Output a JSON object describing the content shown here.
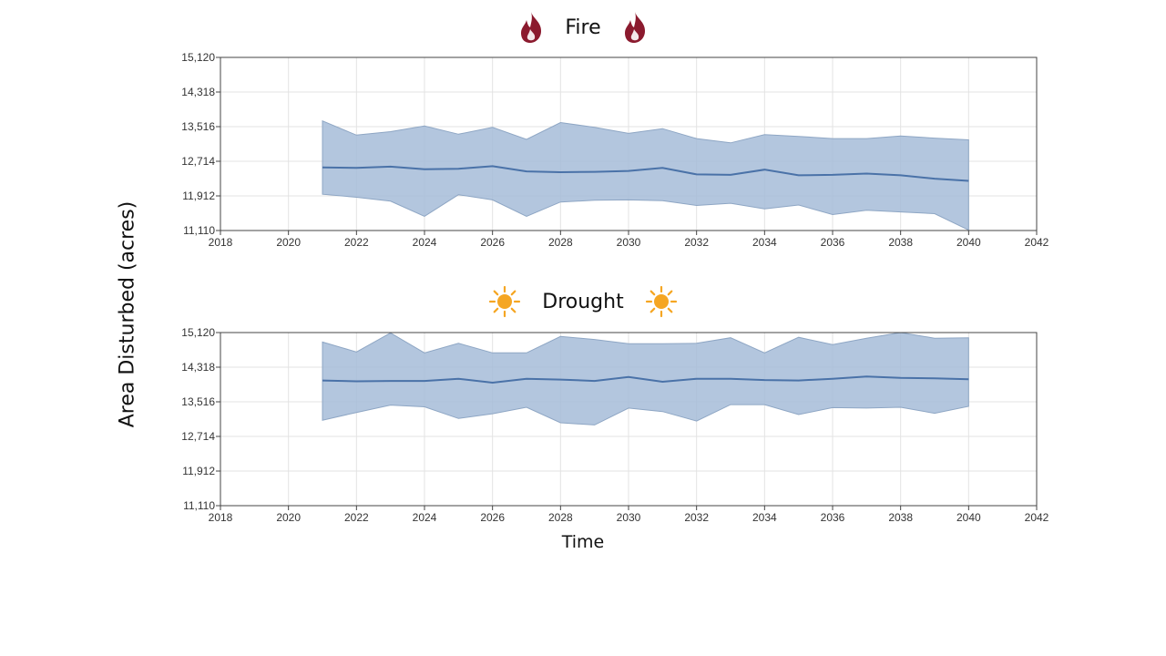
{
  "ylabel": "Area Disturbed (acres)",
  "xlabel": "Time",
  "chart_data": [
    {
      "type": "area",
      "title": "Fire",
      "title_icon": "flame-icon",
      "icon_color": "#8b1a2e",
      "xlim": [
        2018,
        2042
      ],
      "ylim": [
        11110,
        15120
      ],
      "xticks": [
        "2018",
        "2020",
        "2022",
        "2024",
        "2026",
        "2028",
        "2030",
        "2032",
        "2034",
        "2036",
        "2038",
        "2040",
        "2042"
      ],
      "yticks": [
        "11,110",
        "11,912",
        "12,714",
        "13,516",
        "14,318",
        "15,120"
      ],
      "grid": true,
      "x": [
        2021,
        2022,
        2023,
        2024,
        2025,
        2026,
        2027,
        2028,
        2029,
        2030,
        2031,
        2032,
        2033,
        2034,
        2035,
        2036,
        2037,
        2038,
        2039,
        2040
      ],
      "series": [
        {
          "role": "upper",
          "values": [
            13650,
            13320,
            13400,
            13530,
            13340,
            13500,
            13220,
            13610,
            13500,
            13360,
            13470,
            13240,
            13140,
            13330,
            13290,
            13240,
            13240,
            13300,
            13250,
            13210
          ]
        },
        {
          "role": "mean",
          "values": [
            12570,
            12560,
            12590,
            12530,
            12540,
            12600,
            12480,
            12460,
            12470,
            12490,
            12560,
            12410,
            12400,
            12520,
            12390,
            12400,
            12430,
            12390,
            12310,
            12260
          ]
        },
        {
          "role": "lower",
          "values": [
            11950,
            11880,
            11790,
            11440,
            11940,
            11820,
            11440,
            11770,
            11810,
            11820,
            11800,
            11690,
            11740,
            11610,
            11700,
            11480,
            11580,
            11540,
            11500,
            11120
          ]
        }
      ]
    },
    {
      "type": "area",
      "title": "Drought",
      "title_icon": "sun-icon",
      "icon_color": "#f5a623",
      "xlim": [
        2018,
        2042
      ],
      "ylim": [
        11110,
        15120
      ],
      "xticks": [
        "2018",
        "2020",
        "2022",
        "2024",
        "2026",
        "2028",
        "2030",
        "2032",
        "2034",
        "2036",
        "2038",
        "2040",
        "2042"
      ],
      "yticks": [
        "11,110",
        "11,912",
        "12,714",
        "13,516",
        "14,318",
        "15,120"
      ],
      "grid": true,
      "x": [
        2021,
        2022,
        2023,
        2024,
        2025,
        2026,
        2027,
        2028,
        2029,
        2030,
        2031,
        2032,
        2033,
        2034,
        2035,
        2036,
        2037,
        2038,
        2039,
        2040
      ],
      "series": [
        {
          "role": "upper",
          "values": [
            14900,
            14670,
            15110,
            14650,
            14870,
            14650,
            14650,
            15030,
            14960,
            14860,
            14860,
            14870,
            15000,
            14650,
            15010,
            14840,
            14990,
            15120,
            14990,
            15000
          ]
        },
        {
          "role": "mean",
          "values": [
            14010,
            13990,
            14000,
            14000,
            14050,
            13960,
            14050,
            14030,
            14000,
            14090,
            13980,
            14050,
            14050,
            14020,
            14010,
            14050,
            14100,
            14070,
            14060,
            14040
          ]
        },
        {
          "role": "lower",
          "values": [
            13090,
            13270,
            13440,
            13400,
            13130,
            13240,
            13390,
            13030,
            12980,
            13370,
            13290,
            13070,
            13450,
            13450,
            13220,
            13380,
            13370,
            13390,
            13250,
            13410
          ]
        }
      ]
    }
  ]
}
